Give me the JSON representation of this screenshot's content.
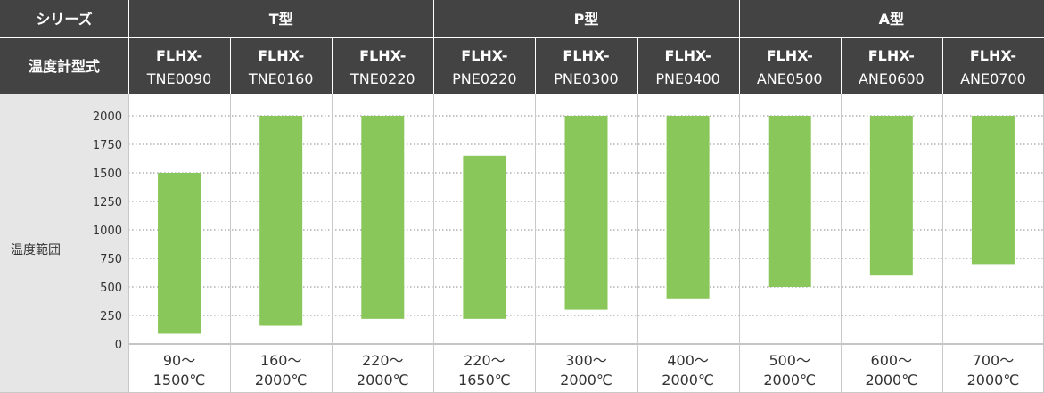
{
  "header": {
    "series_label": "シリーズ",
    "model_label": "温度計型式",
    "range_label": "温度範囲"
  },
  "groups": [
    {
      "name": "T型",
      "count": 3
    },
    {
      "name": "P型",
      "count": 3
    },
    {
      "name": "A型",
      "count": 3
    }
  ],
  "models": [
    {
      "prefix": "FLHX-",
      "code": "TNE0090",
      "range_line1": "90～",
      "range_line2": "1500℃"
    },
    {
      "prefix": "FLHX-",
      "code": "TNE0160",
      "range_line1": "160～",
      "range_line2": "2000℃"
    },
    {
      "prefix": "FLHX-",
      "code": "TNE0220",
      "range_line1": "220～",
      "range_line2": "2000℃"
    },
    {
      "prefix": "FLHX-",
      "code": "PNE0220",
      "range_line1": "220～",
      "range_line2": "1650℃"
    },
    {
      "prefix": "FLHX-",
      "code": "PNE0300",
      "range_line1": "300～",
      "range_line2": "2000℃"
    },
    {
      "prefix": "FLHX-",
      "code": "PNE0400",
      "range_line1": "400～",
      "range_line2": "2000℃"
    },
    {
      "prefix": "FLHX-",
      "code": "ANE0500",
      "range_line1": "500～",
      "range_line2": "2000℃"
    },
    {
      "prefix": "FLHX-",
      "code": "ANE0600",
      "range_line1": "600～",
      "range_line2": "2000℃"
    },
    {
      "prefix": "FLHX-",
      "code": "ANE0700",
      "range_line1": "700～",
      "range_line2": "2000℃"
    }
  ],
  "colors": {
    "header_bg": "#434343",
    "label_bg": "#e6e6e6",
    "bar": "#89c75b",
    "grid": "#888888",
    "border": "#c8c8c8"
  },
  "chart_data": {
    "type": "bar",
    "orientation": "vertical-range",
    "categories": [
      "TNE0090",
      "TNE0160",
      "TNE0220",
      "PNE0220",
      "PNE0300",
      "PNE0400",
      "ANE0500",
      "ANE0600",
      "ANE0700"
    ],
    "series": [
      {
        "low": [
          90,
          160,
          220,
          220,
          300,
          400,
          500,
          600,
          700
        ],
        "high": [
          1500,
          2000,
          2000,
          1650,
          2000,
          2000,
          2000,
          2000,
          2000
        ]
      }
    ],
    "ylim": [
      0,
      2000
    ],
    "yticks": [
      0,
      250,
      500,
      750,
      1000,
      1250,
      1500,
      1750,
      2000
    ],
    "grid": true
  }
}
